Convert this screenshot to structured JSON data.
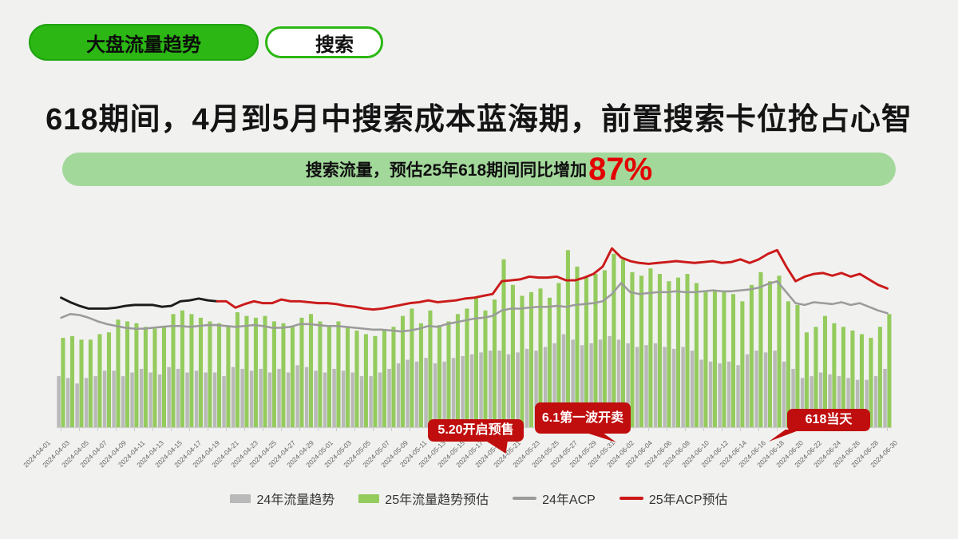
{
  "slide": {
    "badge": {
      "primary_label": "大盘流量趋势",
      "secondary_label": "搜索"
    },
    "title": "618期间，4月到5月中搜索成本蓝海期，前置搜索卡位抢占心智",
    "banner": {
      "text": "搜索流量，预估25年618期间同比增加",
      "highlight": "87%"
    }
  },
  "colors": {
    "background": "#f1f1ef",
    "badge_green": "#2cb714",
    "banner_green": "#a3d89b",
    "highlight_red": "#e30000",
    "callout_red": "#c00d0d",
    "bar_gray": "#b9b9b9",
    "bar_green": "#94cb5d",
    "line_gray": "#9b9b9b",
    "line_red": "#cb1a1a",
    "line_black_actual": "#1c1c1c",
    "axis": "#cccccc"
  },
  "chart_data": {
    "type": "bar",
    "subtype": "daily bars with two overlay lines (combo chart)",
    "title": "",
    "xlabel": "",
    "ylabel": "",
    "ylim": [
      0,
      105
    ],
    "grid": false,
    "legend_position": "bottom",
    "x_tick_every": 2,
    "x": [
      "2024-04-01",
      "2024-04-02",
      "2024-04-03",
      "2024-04-04",
      "2024-04-05",
      "2024-04-06",
      "2024-04-07",
      "2024-04-08",
      "2024-04-09",
      "2024-04-10",
      "2024-04-11",
      "2024-04-12",
      "2024-04-13",
      "2024-04-14",
      "2024-04-15",
      "2024-04-16",
      "2024-04-17",
      "2024-04-18",
      "2024-04-19",
      "2024-04-20",
      "2024-04-21",
      "2024-04-22",
      "2024-04-23",
      "2024-04-24",
      "2024-04-25",
      "2024-04-26",
      "2024-04-27",
      "2024-04-28",
      "2024-04-29",
      "2024-04-30",
      "2024-05-01",
      "2024-05-02",
      "2024-05-03",
      "2024-05-04",
      "2024-05-05",
      "2024-05-06",
      "2024-05-07",
      "2024-05-08",
      "2024-05-09",
      "2024-05-10",
      "2024-05-11",
      "2024-05-12",
      "2024-05-13",
      "2024-05-14",
      "2024-05-15",
      "2024-05-16",
      "2024-05-17",
      "2024-05-18",
      "2024-05-19",
      "2024-05-20",
      "2024-05-21",
      "2024-05-22",
      "2024-05-23",
      "2024-05-24",
      "2024-05-25",
      "2024-05-26",
      "2024-05-27",
      "2024-05-28",
      "2024-05-29",
      "2024-05-30",
      "2024-05-31",
      "2024-06-01",
      "2024-06-02",
      "2024-06-03",
      "2024-06-04",
      "2024-06-05",
      "2024-06-06",
      "2024-06-07",
      "2024-06-08",
      "2024-06-09",
      "2024-06-10",
      "2024-06-11",
      "2024-06-12",
      "2024-06-13",
      "2024-06-14",
      "2024-06-15",
      "2024-06-16",
      "2024-06-17",
      "2024-06-18",
      "2024-06-19",
      "2024-06-20",
      "2024-06-21",
      "2024-06-22",
      "2024-06-23",
      "2024-06-24",
      "2024-06-25",
      "2024-06-26",
      "2024-06-27",
      "2024-06-28",
      "2024-06-29",
      "2024-06-30"
    ],
    "series": [
      {
        "name": "24年流量趋势",
        "type": "bar",
        "color": "#b9b9b9",
        "values": [
          28,
          27,
          24,
          27,
          28,
          31,
          31,
          28,
          30,
          32,
          30,
          29,
          33,
          32,
          30,
          31,
          30,
          30,
          28,
          33,
          32,
          31,
          32,
          30,
          32,
          30,
          34,
          33,
          31,
          30,
          32,
          31,
          30,
          28,
          28,
          30,
          32,
          35,
          37,
          36,
          38,
          35,
          36,
          38,
          39,
          40,
          41,
          42,
          42,
          40,
          41,
          43,
          42,
          44,
          46,
          51,
          48,
          45,
          46,
          48,
          50,
          48,
          46,
          44,
          45,
          46,
          44,
          43,
          44,
          42,
          37,
          36,
          35,
          36,
          34,
          40,
          42,
          41,
          42,
          36,
          32,
          27,
          28,
          30,
          29,
          28,
          27,
          26,
          26,
          28,
          32
        ]
      },
      {
        "name": "25年流量趋势预估",
        "type": "bar",
        "color": "#94cb5d",
        "values": [
          49,
          50,
          48,
          48,
          51,
          52,
          59,
          58,
          57,
          55,
          54,
          55,
          62,
          64,
          62,
          60,
          58,
          57,
          55,
          63,
          61,
          60,
          61,
          58,
          57,
          55,
          60,
          62,
          58,
          56,
          58,
          55,
          53,
          51,
          50,
          53,
          55,
          61,
          65,
          57,
          64,
          56,
          58,
          62,
          65,
          71,
          64,
          70,
          92,
          78,
          72,
          74,
          76,
          71,
          79,
          97,
          88,
          82,
          84,
          86,
          95,
          92,
          85,
          83,
          87,
          84,
          80,
          82,
          84,
          79,
          74,
          75,
          74,
          73,
          69,
          78,
          85,
          80,
          83,
          69,
          67,
          52,
          55,
          61,
          57,
          55,
          53,
          51,
          49,
          55,
          62
        ]
      },
      {
        "name": "24年ACP",
        "type": "line",
        "color": "#9b9b9b",
        "values": [
          60,
          62,
          61.5,
          60,
          58,
          56.5,
          55.5,
          54.5,
          54,
          54,
          54.5,
          55,
          55.5,
          55.5,
          55,
          55.5,
          56,
          56,
          55.5,
          55,
          55.5,
          56,
          55.5,
          54.5,
          54.5,
          55,
          56.5,
          56.5,
          56,
          55.5,
          55.5,
          55,
          54.5,
          54,
          53.5,
          53.5,
          53,
          52.5,
          53,
          54,
          55.5,
          55,
          56.5,
          57.5,
          58.5,
          59.5,
          60,
          61,
          64,
          65,
          65,
          65.5,
          66,
          66,
          66.5,
          66,
          67,
          67.5,
          68,
          69,
          73,
          79,
          74,
          73,
          73.5,
          74,
          74,
          74.5,
          74,
          74,
          74.5,
          75,
          74.5,
          74.5,
          75,
          75.5,
          76.5,
          78.5,
          80,
          74,
          68,
          67,
          68.5,
          68,
          67.5,
          68.5,
          67,
          68,
          66,
          64,
          62.5
        ]
      },
      {
        "name": "25年ACP预估",
        "type": "line",
        "color": "#cb1a1a",
        "actual_color": "#1c1c1c",
        "actual_until_index": 17,
        "values": [
          71,
          68.5,
          66.5,
          65,
          65,
          65,
          65.5,
          66.5,
          67,
          67,
          67,
          66,
          66.5,
          69,
          69.5,
          70.5,
          69.5,
          69,
          69,
          65.5,
          67.5,
          69,
          68,
          68,
          70,
          69,
          69,
          68.5,
          68,
          68,
          67.5,
          66.5,
          66,
          65,
          64.5,
          65,
          66,
          67,
          68,
          68.5,
          69.5,
          68.5,
          69,
          69.5,
          70.5,
          71,
          72,
          73,
          80,
          80.5,
          81,
          82.5,
          82,
          82,
          82.5,
          80.5,
          80.5,
          82,
          84,
          88,
          98,
          93,
          91,
          90,
          89.5,
          90,
          90.5,
          91,
          90.5,
          90,
          90.5,
          91,
          90,
          90.5,
          92,
          90,
          92,
          95,
          97,
          88,
          80,
          82.5,
          84,
          84.5,
          83,
          84.5,
          82.5,
          84,
          81,
          78,
          76
        ]
      }
    ],
    "annotations": [
      {
        "label": "5.20开启预售",
        "x": "2024-05-19"
      },
      {
        "label": "6.1第一波开卖",
        "x": "2024-05-31"
      },
      {
        "label": "618当天",
        "x": "2024-06-18"
      }
    ]
  }
}
